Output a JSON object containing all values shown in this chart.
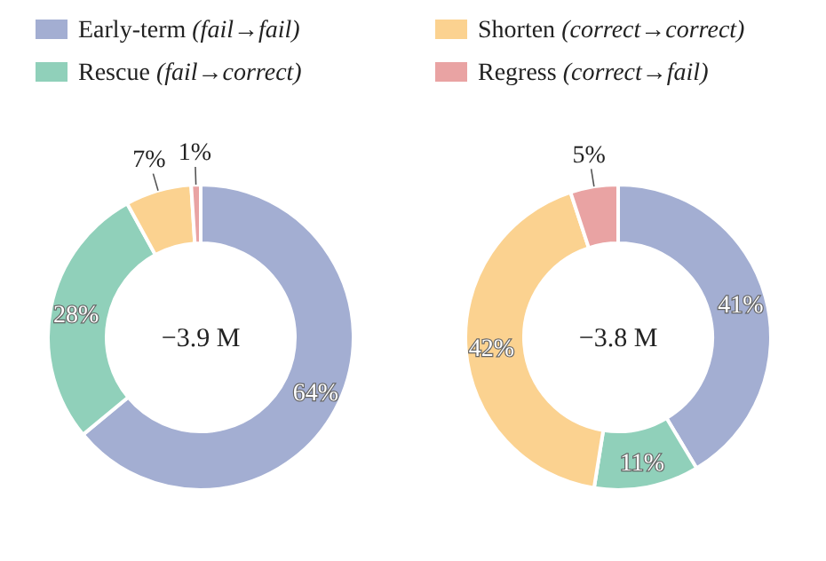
{
  "chart_data": [
    {
      "type": "donut",
      "categories": [
        "Early-term (fail→fail)",
        "Rescue (fail→correct)",
        "Shorten (correct→correct)",
        "Regress (correct→fail)"
      ],
      "values": [
        64,
        28,
        7,
        1
      ],
      "value_labels": [
        "64%",
        "28%",
        "7%",
        "1%"
      ],
      "colors": [
        "#a3aed2",
        "#90d0ba",
        "#fbd290",
        "#e9a3a3"
      ],
      "legend": "top",
      "annotations": [
        "−3.9 M"
      ]
    },
    {
      "type": "donut",
      "categories": [
        null,
        null,
        null,
        null
      ],
      "values": [
        41,
        11,
        42,
        5
      ],
      "value_labels": [
        "41%",
        "11%",
        "42%",
        "5%"
      ],
      "colors": [
        "#a3aed2",
        "#90d0ba",
        "#fbd290",
        "#e9a3a3"
      ],
      "annotations": [
        "−3.8 M"
      ]
    }
  ]
}
